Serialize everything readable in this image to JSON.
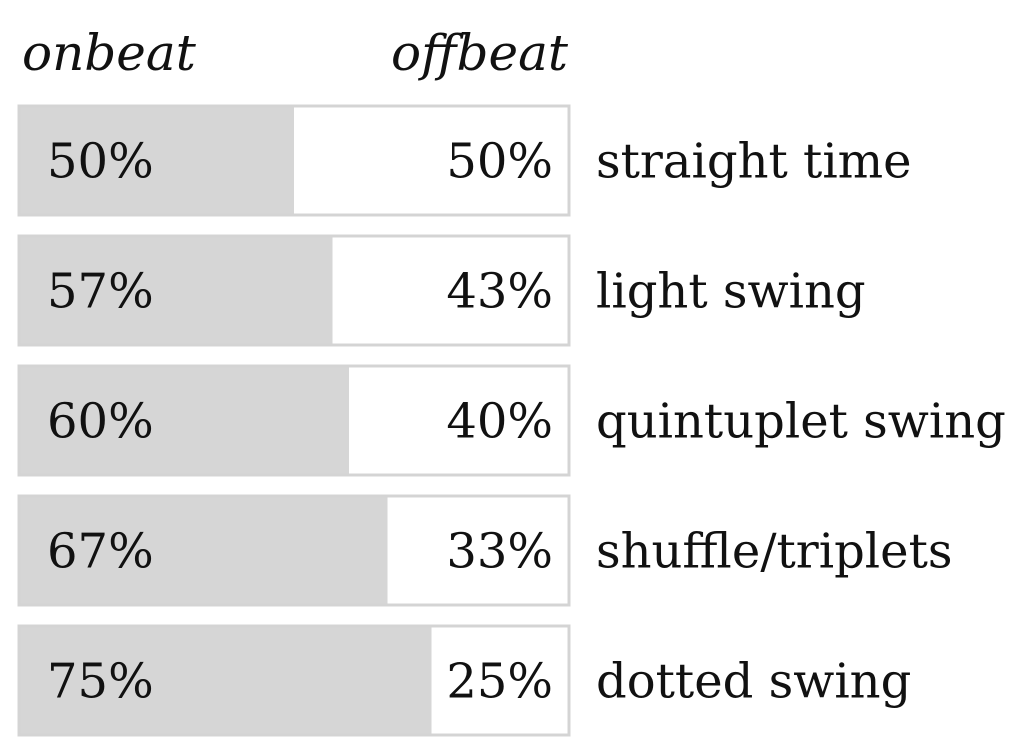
{
  "chart_data": {
    "type": "bar",
    "stacked": true,
    "orientation": "horizontal",
    "x_range": [
      0,
      100
    ],
    "unit": "%",
    "headers": {
      "left": "onbeat",
      "right": "offbeat"
    },
    "categories": [
      "straight time",
      "light swing",
      "quintuplet swing",
      "shuffle/triplets",
      "dotted swing"
    ],
    "series": [
      {
        "name": "onbeat",
        "values": [
          50,
          57,
          60,
          67,
          75
        ],
        "color": "#d6d6d6"
      },
      {
        "name": "offbeat",
        "values": [
          50,
          43,
          40,
          33,
          25
        ],
        "color": "#ffffff"
      }
    ],
    "onbeat_labels": [
      "50%",
      "57%",
      "60%",
      "67%",
      "75%"
    ],
    "offbeat_labels": [
      "50%",
      "43%",
      "40%",
      "33%",
      "25%"
    ],
    "border_color": "#d4d4d4",
    "grid": false,
    "legend": "none"
  }
}
